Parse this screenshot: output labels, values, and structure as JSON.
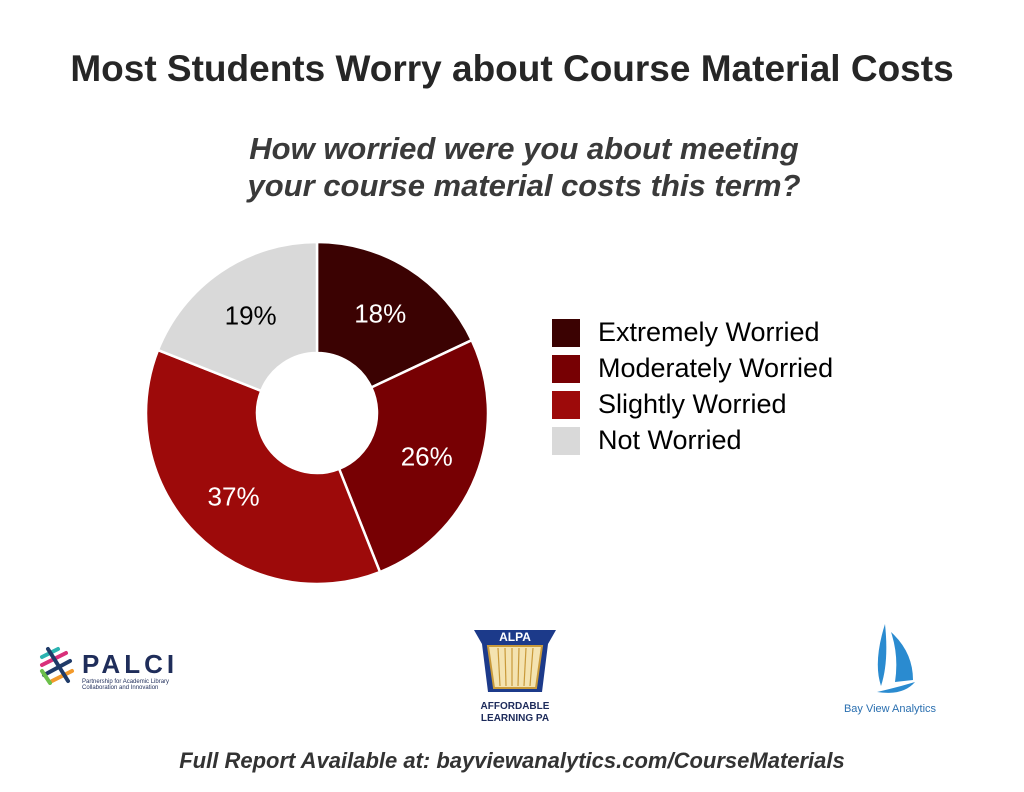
{
  "chart_data": {
    "type": "pie",
    "title": "Most Students Worry about Course Material Costs",
    "subtitle": "How worried were you about meeting your course material costs this term?",
    "subtitle_lines": [
      "How worried were you about meeting",
      "your course material costs this term?"
    ],
    "categories": [
      "Extremely Worried",
      "Moderately Worried",
      "Slightly Worried",
      "Not Worried"
    ],
    "values": [
      18,
      26,
      37,
      19
    ],
    "labels": [
      "18%",
      "26%",
      "37%",
      "19%"
    ],
    "colors": [
      "#3b0202",
      "#770003",
      "#9d0a0a",
      "#d9d9d9"
    ],
    "label_colors": [
      "#ffffff",
      "#ffffff",
      "#ffffff",
      "#000000"
    ],
    "legend_position": "right",
    "donut": true
  },
  "logos": {
    "palci": {
      "name": "PALCI",
      "tagline": "Partnership for Academic Library Collaboration and Innovation"
    },
    "alpa": {
      "name": "ALPA",
      "tagline": "AFFORDABLE LEARNING PA"
    },
    "bayview": {
      "name": "Bay View Analytics"
    }
  },
  "footer": "Full Report Available at: bayviewanalytics.com/CourseMaterials"
}
